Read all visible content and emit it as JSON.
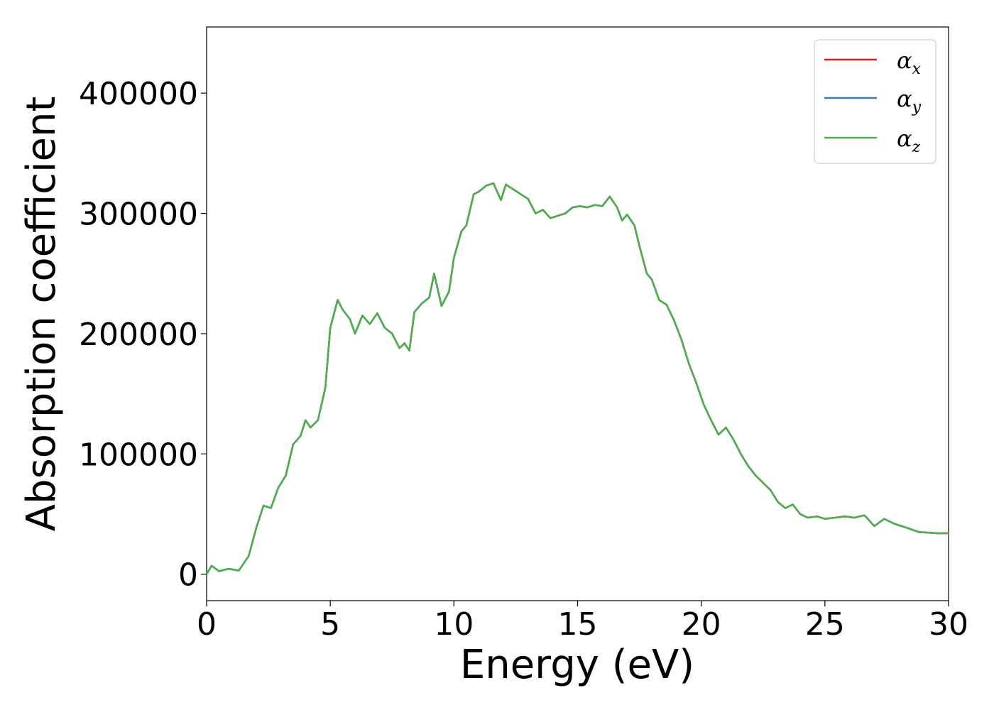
{
  "chart_data": {
    "type": "line",
    "title": "",
    "xlabel": "Energy (eV)",
    "ylabel": "Absorption coefficient",
    "xlim": [
      0,
      30
    ],
    "ylim": [
      -22000,
      455000
    ],
    "xticks": [
      0,
      5,
      10,
      15,
      20,
      25,
      30
    ],
    "xtick_labels": [
      "0",
      "5",
      "10",
      "15",
      "20",
      "25",
      "30"
    ],
    "yticks": [
      0,
      100000,
      200000,
      300000,
      400000
    ],
    "ytick_labels": [
      "0",
      "100000",
      "200000",
      "300000",
      "400000"
    ],
    "grid": false,
    "legend_position": "top-right",
    "series": [
      {
        "name": "αx",
        "base": "α",
        "sub": "x",
        "color": "#e41a1c",
        "data_ref": "shared"
      },
      {
        "name": "αy",
        "base": "α",
        "sub": "y",
        "color": "#377eb8",
        "data_ref": "shared"
      },
      {
        "name": "αz",
        "base": "α",
        "sub": "z",
        "color": "#4daf4a",
        "data_ref": "shared"
      }
    ],
    "x": [
      0,
      0.2,
      0.5,
      0.9,
      1.3,
      1.7,
      2.0,
      2.3,
      2.6,
      2.9,
      3.2,
      3.5,
      3.8,
      4.0,
      4.2,
      4.5,
      4.8,
      5.0,
      5.3,
      5.5,
      5.8,
      6.0,
      6.3,
      6.6,
      6.9,
      7.2,
      7.5,
      7.8,
      8.0,
      8.2,
      8.4,
      8.7,
      9.0,
      9.2,
      9.5,
      9.8,
      10.0,
      10.3,
      10.5,
      10.8,
      11.0,
      11.3,
      11.6,
      11.9,
      12.1,
      12.4,
      12.7,
      13.0,
      13.3,
      13.6,
      13.9,
      14.2,
      14.5,
      14.8,
      15.1,
      15.4,
      15.7,
      16.0,
      16.3,
      16.6,
      16.8,
      17.0,
      17.3,
      17.5,
      17.8,
      18.0,
      18.3,
      18.6,
      18.9,
      19.2,
      19.5,
      19.8,
      20.1,
      20.4,
      20.7,
      21.0,
      21.3,
      21.6,
      21.9,
      22.2,
      22.5,
      22.8,
      23.1,
      23.4,
      23.7,
      24.0,
      24.3,
      24.7,
      25.0,
      25.4,
      25.8,
      26.2,
      26.6,
      27.0,
      27.4,
      27.8,
      28.1,
      28.4,
      28.8,
      29.2,
      29.6,
      30.0
    ],
    "y": [
      0,
      7000,
      2500,
      4500,
      3000,
      15000,
      38000,
      57000,
      55000,
      72000,
      82000,
      108000,
      115000,
      128000,
      122000,
      128000,
      155000,
      205000,
      228000,
      220000,
      212000,
      200000,
      215000,
      208000,
      217000,
      205000,
      200000,
      188000,
      192000,
      186000,
      218000,
      225000,
      230000,
      250000,
      223000,
      235000,
      263000,
      285000,
      290000,
      316000,
      318000,
      323000,
      325000,
      311000,
      324000,
      320000,
      316000,
      312000,
      300000,
      303000,
      296000,
      298000,
      300000,
      305000,
      306000,
      305000,
      307000,
      306000,
      314000,
      305000,
      294000,
      299000,
      290000,
      273000,
      250000,
      245000,
      228000,
      224000,
      211000,
      195000,
      175000,
      159000,
      141000,
      128000,
      116000,
      122000,
      112000,
      100000,
      90000,
      82000,
      76000,
      70000,
      60000,
      55000,
      58000,
      50000,
      47000,
      48000,
      46000,
      47000,
      48000,
      47000,
      49000,
      40000,
      46000,
      42000,
      40000,
      38000,
      35000,
      34500,
      34000,
      34000
    ]
  }
}
